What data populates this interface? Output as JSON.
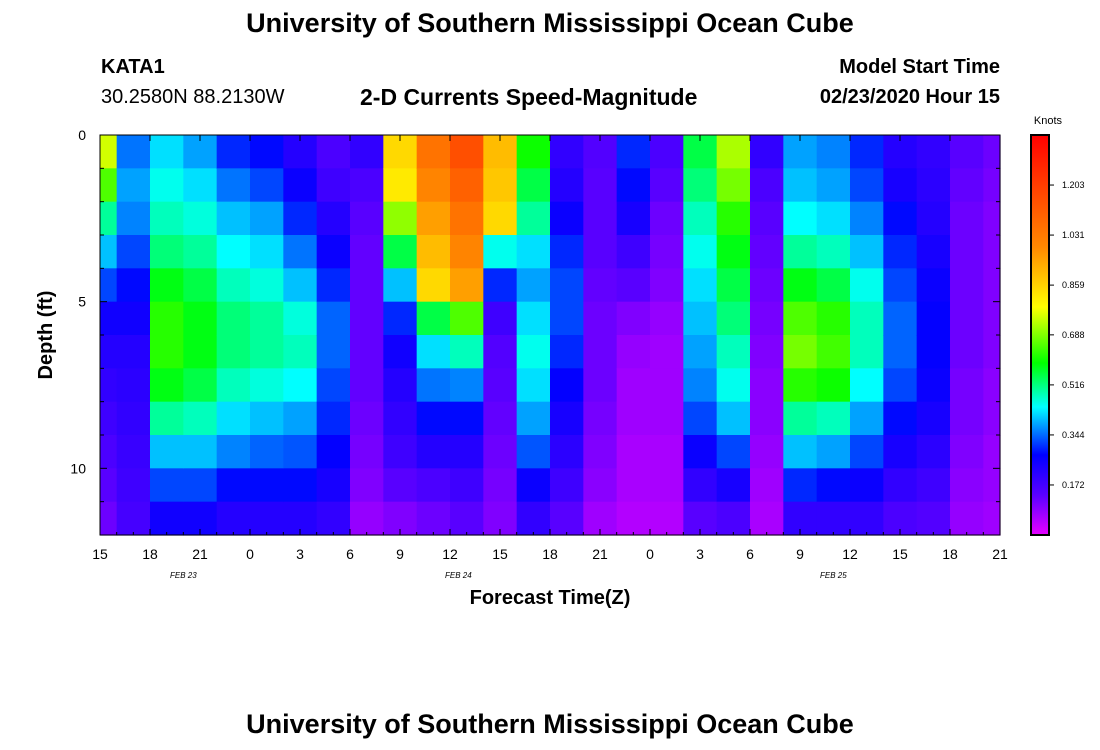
{
  "header": {
    "title": "University of Southern Mississippi Ocean Cube",
    "station": "KATA1",
    "coords": "30.2580N 88.2130W",
    "subtitle": "2-D Currents Speed-Magnitude",
    "model_start_label": "Model Start Time",
    "model_start_value": "02/23/2020 Hour 15"
  },
  "footer": {
    "title": "University of Southern Mississippi Ocean Cube"
  },
  "chart_data": {
    "type": "heatmap",
    "title": "2-D Currents Speed-Magnitude",
    "xlabel": "Forecast Time(Z)",
    "ylabel": "Depth (ft)",
    "x_ticks": [
      "15",
      "18",
      "21",
      "0",
      "3",
      "6",
      "9",
      "12",
      "15",
      "18",
      "21",
      "0",
      "3",
      "6",
      "9",
      "12",
      "15",
      "18",
      "21"
    ],
    "x_tick_start_hour": 15,
    "x_tick_step_hours": 3,
    "x_range_hours": [
      15,
      69
    ],
    "date_labels": [
      {
        "label": "FEB  23",
        "hour": 20
      },
      {
        "label": "FEB  24",
        "hour": 36.5
      },
      {
        "label": "FEB  25",
        "hour": 59
      }
    ],
    "y_ticks": [
      "0",
      "5",
      "10"
    ],
    "y_tick_values": [
      0,
      5,
      10
    ],
    "y_range": [
      0,
      12
    ],
    "colorbar": {
      "label": "Knots",
      "ticks": [
        "1.203",
        "1.031",
        "0.859",
        "0.688",
        "0.516",
        "0.344",
        "0.172"
      ],
      "range": [
        0,
        1.375
      ]
    },
    "depths_ft": [
      0.5,
      1.5,
      2.5,
      3.5,
      4.5,
      5.5,
      6.5,
      7.5,
      8.5,
      9.5,
      10.5,
      11.5
    ],
    "columns": [
      {
        "hour": 15,
        "values": [
          0.75,
          0.65,
          0.5,
          0.4,
          0.32,
          0.25,
          0.22,
          0.2,
          0.18,
          0.16,
          0.14,
          0.12
        ]
      },
      {
        "hour": 17,
        "values": [
          0.35,
          0.38,
          0.36,
          0.32,
          0.28,
          0.25,
          0.22,
          0.21,
          0.2,
          0.19,
          0.18,
          0.17
        ]
      },
      {
        "hour": 19,
        "values": [
          0.42,
          0.45,
          0.48,
          0.52,
          0.58,
          0.62,
          0.62,
          0.58,
          0.5,
          0.4,
          0.32,
          0.25
        ]
      },
      {
        "hour": 21,
        "values": [
          0.38,
          0.42,
          0.46,
          0.5,
          0.55,
          0.58,
          0.58,
          0.55,
          0.48,
          0.4,
          0.32,
          0.25
        ]
      },
      {
        "hour": 23,
        "values": [
          0.3,
          0.35,
          0.4,
          0.44,
          0.48,
          0.52,
          0.52,
          0.48,
          0.42,
          0.36,
          0.28,
          0.22
        ]
      },
      {
        "hour": 25,
        "values": [
          0.28,
          0.32,
          0.38,
          0.42,
          0.46,
          0.5,
          0.5,
          0.46,
          0.4,
          0.34,
          0.28,
          0.22
        ]
      },
      {
        "hour": 27,
        "values": [
          0.22,
          0.26,
          0.3,
          0.35,
          0.4,
          0.46,
          0.48,
          0.44,
          0.38,
          0.33,
          0.28,
          0.22
        ]
      },
      {
        "hour": 29,
        "values": [
          0.16,
          0.18,
          0.22,
          0.26,
          0.3,
          0.34,
          0.34,
          0.32,
          0.3,
          0.27,
          0.24,
          0.2
        ]
      },
      {
        "hour": 31,
        "values": [
          0.2,
          0.16,
          0.14,
          0.13,
          0.13,
          0.13,
          0.13,
          0.13,
          0.12,
          0.11,
          0.1,
          0.08
        ]
      },
      {
        "hour": 33,
        "values": [
          0.85,
          0.82,
          0.7,
          0.55,
          0.4,
          0.3,
          0.25,
          0.22,
          0.2,
          0.18,
          0.14,
          0.1
        ]
      },
      {
        "hour": 35,
        "values": [
          1.05,
          1.0,
          0.95,
          0.9,
          0.85,
          0.55,
          0.42,
          0.35,
          0.28,
          0.22,
          0.16,
          0.12
        ]
      },
      {
        "hour": 37,
        "values": [
          1.15,
          1.1,
          1.05,
          1.0,
          0.95,
          0.65,
          0.48,
          0.36,
          0.28,
          0.22,
          0.18,
          0.14
        ]
      },
      {
        "hour": 39,
        "values": [
          0.9,
          0.88,
          0.85,
          0.45,
          0.3,
          0.18,
          0.15,
          0.14,
          0.13,
          0.12,
          0.11,
          0.1
        ]
      },
      {
        "hour": 41,
        "values": [
          0.6,
          0.55,
          0.5,
          0.42,
          0.38,
          0.42,
          0.45,
          0.42,
          0.38,
          0.33,
          0.26,
          0.2
        ]
      },
      {
        "hour": 43,
        "values": [
          0.2,
          0.22,
          0.26,
          0.3,
          0.32,
          0.32,
          0.3,
          0.27,
          0.24,
          0.21,
          0.18,
          0.14
        ]
      },
      {
        "hour": 45,
        "values": [
          0.15,
          0.14,
          0.14,
          0.14,
          0.13,
          0.12,
          0.12,
          0.12,
          0.11,
          0.1,
          0.09,
          0.07
        ]
      },
      {
        "hour": 47,
        "values": [
          0.3,
          0.28,
          0.24,
          0.18,
          0.14,
          0.1,
          0.08,
          0.07,
          0.07,
          0.06,
          0.06,
          0.05
        ]
      },
      {
        "hour": 49,
        "values": [
          0.16,
          0.14,
          0.12,
          0.11,
          0.1,
          0.08,
          0.07,
          0.07,
          0.07,
          0.06,
          0.06,
          0.05
        ]
      },
      {
        "hour": 51,
        "values": [
          0.55,
          0.52,
          0.48,
          0.45,
          0.42,
          0.4,
          0.38,
          0.36,
          0.32,
          0.26,
          0.2,
          0.14
        ]
      },
      {
        "hour": 53,
        "values": [
          0.72,
          0.68,
          0.62,
          0.58,
          0.55,
          0.52,
          0.48,
          0.45,
          0.4,
          0.32,
          0.24,
          0.16
        ]
      },
      {
        "hour": 55,
        "values": [
          0.2,
          0.16,
          0.14,
          0.13,
          0.12,
          0.11,
          0.1,
          0.09,
          0.09,
          0.08,
          0.07,
          0.06
        ]
      },
      {
        "hour": 57,
        "values": [
          0.38,
          0.4,
          0.44,
          0.5,
          0.58,
          0.65,
          0.68,
          0.62,
          0.5,
          0.4,
          0.3,
          0.2
        ]
      },
      {
        "hour": 59,
        "values": [
          0.36,
          0.38,
          0.42,
          0.48,
          0.55,
          0.62,
          0.64,
          0.6,
          0.48,
          0.38,
          0.28,
          0.2
        ]
      },
      {
        "hour": 61,
        "values": [
          0.3,
          0.32,
          0.36,
          0.4,
          0.45,
          0.48,
          0.48,
          0.44,
          0.38,
          0.32,
          0.26,
          0.2
        ]
      },
      {
        "hour": 63,
        "values": [
          0.22,
          0.24,
          0.28,
          0.3,
          0.32,
          0.34,
          0.34,
          0.32,
          0.28,
          0.24,
          0.2,
          0.16
        ]
      },
      {
        "hour": 65,
        "values": [
          0.2,
          0.21,
          0.22,
          0.24,
          0.26,
          0.27,
          0.27,
          0.26,
          0.24,
          0.21,
          0.18,
          0.15
        ]
      },
      {
        "hour": 67,
        "values": [
          0.14,
          0.13,
          0.12,
          0.12,
          0.12,
          0.12,
          0.12,
          0.11,
          0.11,
          0.1,
          0.09,
          0.08
        ]
      },
      {
        "hour": 69,
        "values": [
          0.12,
          0.11,
          0.1,
          0.1,
          0.1,
          0.1,
          0.1,
          0.09,
          0.09,
          0.08,
          0.08,
          0.07
        ]
      }
    ]
  }
}
